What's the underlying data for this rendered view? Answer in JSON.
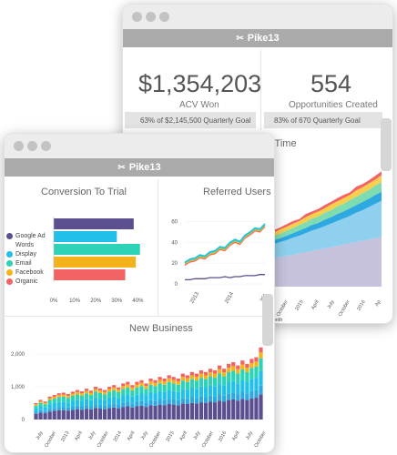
{
  "app_name": "Pike13",
  "back_window": {
    "kpis": [
      {
        "value": "$1,354,203",
        "label": "ACV Won",
        "goal_pct": "63%",
        "goal_rest": "of $2,145,500 Quarterly Goal",
        "progress": 0.63
      },
      {
        "value": "554",
        "label": "Opportunities Created",
        "goal_pct": "83%",
        "goal_rest": "of 670 Quarterly Goal",
        "progress": 0.83
      }
    ],
    "area_chart_title": "r Time",
    "area_chart_x_ticks": [
      "July",
      "October",
      "2015",
      "April",
      "July",
      "October",
      "2016",
      "Ap"
    ],
    "area_chart_x_title": "Month"
  },
  "front_window": {
    "conversion_title": "Conversion To Trial",
    "referred_title": "Referred Users",
    "new_business_title": "New Business"
  },
  "chart_data": [
    {
      "type": "bar",
      "orientation": "horizontal",
      "title": "Conversion To Trial",
      "categories": [
        "Google Ad Words",
        "Display",
        "Email",
        "Facebook",
        "Organic"
      ],
      "values": [
        38,
        30,
        41,
        39,
        34
      ],
      "colors": [
        "#5b4f8f",
        "#22c0e8",
        "#2ed3b7",
        "#f5b31b",
        "#f26464"
      ],
      "x_ticks": [
        "0%",
        "10%",
        "20%",
        "30%",
        "40%"
      ],
      "xlim": [
        0,
        45
      ]
    },
    {
      "type": "line",
      "title": "Referred Users",
      "x_ticks": [
        "2013",
        "2014",
        "201"
      ],
      "y_ticks": [
        "60",
        "40",
        "20",
        "0"
      ],
      "ylim": [
        0,
        70
      ],
      "series": [
        {
          "color": "#f26464",
          "values": [
            18,
            21,
            22,
            25,
            24,
            28,
            29,
            33,
            32,
            37,
            40,
            38,
            44,
            47,
            51,
            50,
            55
          ]
        },
        {
          "color": "#f5b31b",
          "values": [
            19,
            22,
            23,
            26,
            25,
            29,
            30,
            34,
            33,
            38,
            41,
            39,
            45,
            48,
            52,
            51,
            56
          ]
        },
        {
          "color": "#2ed3b7",
          "values": [
            20,
            23,
            24,
            27,
            26,
            30,
            31,
            35,
            34,
            39,
            42,
            40,
            46,
            49,
            53,
            52,
            57
          ]
        },
        {
          "color": "#22c0e8",
          "values": [
            21,
            24,
            25,
            28,
            27,
            31,
            32,
            36,
            35,
            40,
            43,
            41,
            47,
            50,
            54,
            53,
            58
          ]
        },
        {
          "color": "#5b4f8f",
          "values": [
            4,
            4,
            5,
            5,
            5,
            6,
            6,
            6,
            7,
            6,
            7,
            7,
            8,
            8,
            8,
            9,
            9
          ]
        }
      ]
    },
    {
      "type": "bar",
      "stacked": true,
      "title": "New Business",
      "y_ticks": [
        "2,000",
        "1,000",
        "0"
      ],
      "ylim": [
        0,
        2500
      ],
      "x_ticks": [
        "July",
        "October",
        "2013",
        "April",
        "July",
        "October",
        "2014",
        "April",
        "July",
        "October",
        "2015",
        "April",
        "July",
        "October",
        "2016",
        "April",
        "July",
        "October"
      ],
      "colors": [
        "#5b4f8f",
        "#2ea8e0",
        "#22c0e8",
        "#2ed3b7",
        "#f5b31b",
        "#f26464"
      ],
      "totals": [
        500,
        600,
        550,
        700,
        750,
        800,
        820,
        780,
        850,
        900,
        860,
        940,
        880,
        1000,
        950,
        900,
        1000,
        1050,
        980,
        1100,
        1150,
        1050,
        1150,
        1200,
        1100,
        1250,
        1200,
        1300,
        1250,
        1350,
        1300,
        1250,
        1400,
        1350,
        1450,
        1400,
        1500,
        1450,
        1550,
        1500,
        1650,
        1550,
        1700,
        1750,
        1650,
        1800,
        1700,
        1850,
        1900,
        2200
      ]
    },
    {
      "type": "area",
      "stacked": true,
      "title": "r Time",
      "colors": [
        "#c6c2dd",
        "#8fd0ee",
        "#2ea8e0",
        "#7fdcb1",
        "#f7cf4c",
        "#f26464"
      ],
      "layers": [
        [
          40,
          42,
          44,
          46,
          48,
          50,
          52,
          54,
          56,
          58,
          60,
          62,
          64,
          66,
          68,
          70,
          72,
          74,
          76,
          78
        ],
        [
          20,
          21,
          23,
          24,
          25,
          27,
          28,
          30,
          32,
          33,
          35,
          37,
          39,
          41,
          43,
          46,
          48,
          51,
          54,
          57
        ],
        [
          5,
          5,
          6,
          6,
          7,
          7,
          8,
          8,
          9,
          9,
          10,
          10,
          11,
          11,
          12,
          12,
          13,
          13,
          14,
          14
        ],
        [
          6,
          6,
          7,
          7,
          8,
          8,
          9,
          9,
          10,
          10,
          11,
          11,
          12,
          12,
          13,
          13,
          14,
          14,
          15,
          15
        ],
        [
          5,
          6,
          5,
          7,
          6,
          7,
          6,
          8,
          7,
          8,
          7,
          9,
          8,
          9,
          8,
          10,
          9,
          10,
          9,
          11
        ],
        [
          3,
          3,
          4,
          3,
          4,
          4,
          3,
          5,
          4,
          4,
          5,
          4,
          5,
          5,
          4,
          6,
          5,
          5,
          6,
          6
        ]
      ]
    }
  ]
}
